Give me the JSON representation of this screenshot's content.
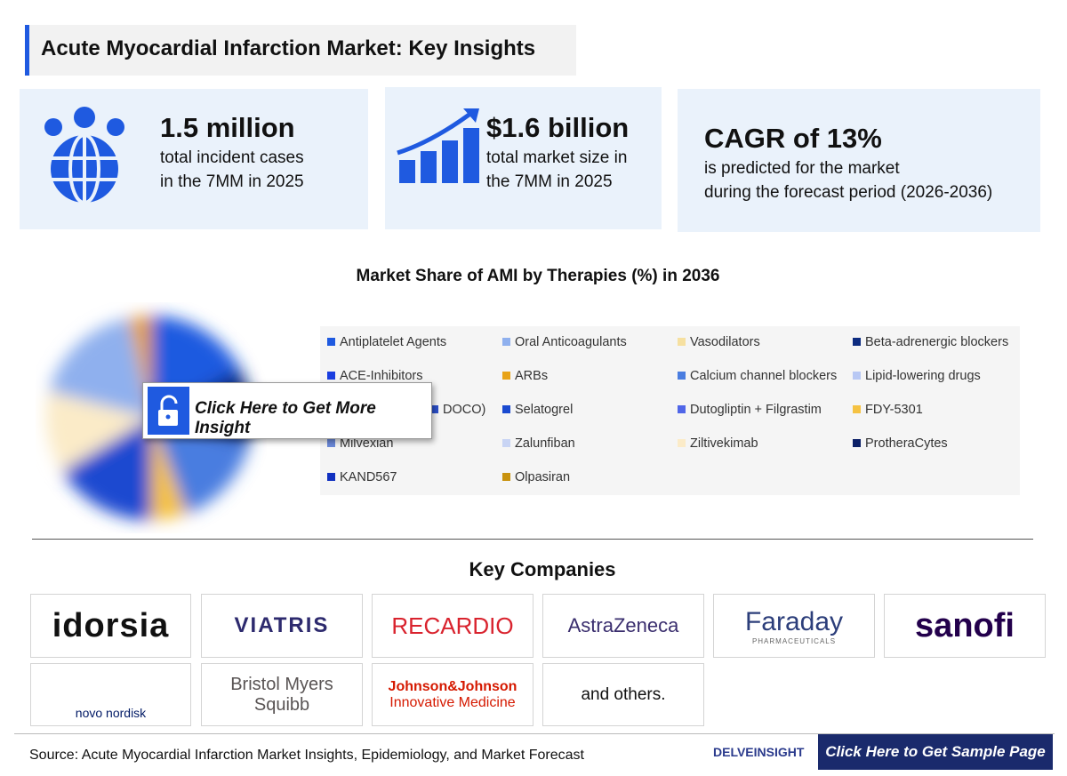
{
  "header": {
    "title": "Acute Myocardial Infarction Market: Key Insights"
  },
  "insights": [
    {
      "value": "1.5 million",
      "lines": [
        "total incident cases",
        "in the 7MM in 2025"
      ]
    },
    {
      "value": "$1.6 billion",
      "lines": [
        "total market size in",
        "the 7MM in 2025"
      ]
    },
    {
      "value": "CAGR of 13%",
      "lines": [
        "is predicted for the market",
        "during the forecast period (2026-2036)"
      ]
    }
  ],
  "chart": {
    "title": "Market Share of AMI by Therapies (%) in 2036",
    "legend": [
      {
        "name": "Antiplatelet Agents",
        "color": "#1f5ae0"
      },
      {
        "name": "Oral Anticoagulants",
        "color": "#8fb0ee"
      },
      {
        "name": "Vasodilators",
        "color": "#f6e0a0"
      },
      {
        "name": "Beta-adrenergic blockers",
        "color": "#0d2c80"
      },
      {
        "name": "ACE-Inhibitors",
        "color": "#1a3ee0"
      },
      {
        "name": "ARBs",
        "color": "#e8a317"
      },
      {
        "name": "Calcium channel blockers",
        "color": "#4a7de0"
      },
      {
        "name": "Lipid-lowering drugs",
        "color": "#b8c8f4"
      },
      {
        "name": "DOCO)",
        "color": "#2b4fc8"
      },
      {
        "name": "Selatogrel",
        "color": "#1a4ad0"
      },
      {
        "name": "Dutogliptin + Filgrastim",
        "color": "#5066e8"
      },
      {
        "name": "FDY-5301",
        "color": "#f5c242"
      },
      {
        "name": "Milvexian",
        "color": "#6a88d8"
      },
      {
        "name": "Zalunfiban",
        "color": "#c8d4f4"
      },
      {
        "name": "Ziltivekimab",
        "color": "#fbebc8"
      },
      {
        "name": "ProtheraCytes",
        "color": "#0b1f66"
      },
      {
        "name": "KAND567",
        "color": "#1030c0"
      },
      {
        "name": "Olpasiran",
        "color": "#c8920e"
      }
    ],
    "overlay_button": "Click Here to Get More Insight"
  },
  "companies": {
    "title": "Key Companies",
    "logos": [
      "idorsia",
      "VIATRIS",
      "RECARDIO",
      "AstraZeneca",
      "Faraday",
      "PHARMACEUTICALS",
      "sanofi",
      "novo nordisk",
      "Bristol Myers",
      "Squibb",
      "Johnson&Johnson",
      "Innovative Medicine"
    ],
    "others": "and others."
  },
  "footer": {
    "source": "Source: Acute Myocardial Infarction Market Insights, Epidemiology, and Market Forecast",
    "brand": "DELVEINSIGHT",
    "button": "Click Here to Get Sample Page"
  }
}
